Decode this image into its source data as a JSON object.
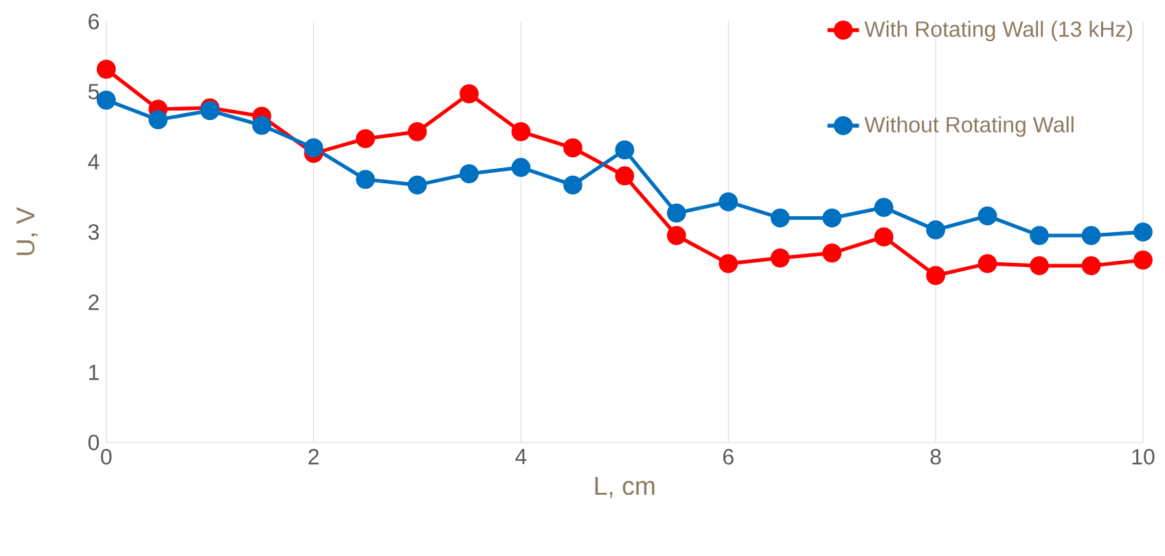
{
  "chart_data": {
    "type": "line",
    "xlabel": "L, cm",
    "ylabel": "U, V",
    "xlim": [
      0,
      10
    ],
    "ylim": [
      0,
      6
    ],
    "xticks": [
      0,
      2,
      4,
      6,
      8,
      10
    ],
    "yticks": [
      0,
      1,
      2,
      3,
      4,
      5,
      6
    ],
    "grid": "x",
    "legend": "top right",
    "marker": "circle",
    "line_style": "solid",
    "x": [
      0,
      0.5,
      1,
      1.5,
      2,
      2.5,
      3,
      3.5,
      4,
      4.5,
      5,
      5.5,
      6,
      6.5,
      7,
      7.5,
      8,
      8.5,
      9,
      9.5,
      10
    ],
    "series": [
      {
        "name": "With Rotating Wall (13 kHz)",
        "color": "#ff0000",
        "values": [
          5.32,
          4.75,
          4.77,
          4.65,
          4.12,
          4.33,
          4.43,
          4.97,
          4.43,
          4.2,
          3.8,
          2.95,
          2.55,
          2.63,
          2.7,
          2.93,
          2.38,
          2.55,
          2.52,
          2.52,
          2.6
        ]
      },
      {
        "name": "Without Rotating Wall",
        "color": "#0070c0",
        "values": [
          4.88,
          4.6,
          4.73,
          4.52,
          4.2,
          3.75,
          3.67,
          3.83,
          3.92,
          3.67,
          4.17,
          3.27,
          3.43,
          3.2,
          3.2,
          3.35,
          3.03,
          3.23,
          2.95,
          2.95,
          3.0
        ]
      }
    ]
  }
}
